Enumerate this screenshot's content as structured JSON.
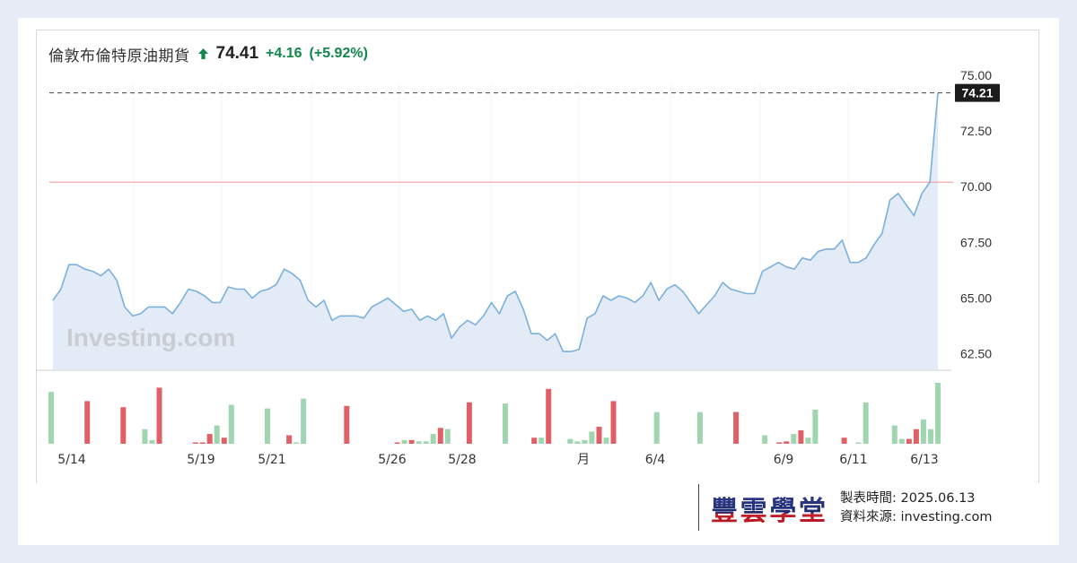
{
  "header": {
    "title": "倫敦布倫特原油期貨",
    "price": "74.41",
    "change": "+4.16",
    "change_pct": "(+5.92%)",
    "trend_icon": "up-arrow-icon",
    "change_color": "#12874a"
  },
  "chart_data": {
    "type": "line",
    "y_ticks": [
      "75.00",
      "72.50",
      "70.00",
      "67.50",
      "65.00",
      "62.50"
    ],
    "ylim": [
      61.8,
      75.4
    ],
    "x_tick_labels": [
      "5/14",
      "5/19",
      "5/21",
      "5/26",
      "5/28",
      "月",
      "6/4",
      "6/9",
      "6/11",
      "6/13"
    ],
    "last_value_label": "74.21",
    "last_value": 74.21,
    "reference_line": 70.2,
    "watermark": "Investing.com",
    "line_color": "#7ab0db",
    "area_color": "#e3ecf6",
    "reference_color": "#f2a9a9",
    "series": [
      {
        "values": [
          64.9,
          65.4,
          66.5,
          66.5,
          66.3,
          66.2,
          66.0,
          66.3,
          65.8,
          64.6,
          64.2,
          64.3,
          64.6,
          64.6,
          64.6,
          64.3,
          64.8,
          65.4,
          65.3,
          65.1,
          64.8,
          64.8,
          65.5,
          65.4,
          65.4,
          65.0,
          65.3,
          65.4,
          65.6,
          66.3,
          66.1,
          65.8,
          64.9,
          64.6,
          64.9,
          64.0,
          64.2,
          64.2,
          64.2,
          64.1,
          64.6,
          64.8,
          65.0,
          64.7,
          64.4,
          64.5,
          64.0,
          64.2,
          64.0,
          64.3,
          63.2,
          63.7,
          64.0,
          63.8,
          64.2,
          64.8,
          64.3,
          65.1,
          65.3,
          64.5,
          63.4,
          63.4,
          63.1,
          63.4,
          62.6,
          62.6,
          62.7,
          64.1,
          64.3,
          65.1,
          64.9,
          65.1,
          65.0,
          64.8,
          65.1,
          65.7,
          64.9,
          65.4,
          65.6,
          65.3,
          64.8,
          64.3,
          64.7,
          65.1,
          65.7,
          65.4,
          65.3,
          65.2,
          65.2,
          66.2,
          66.4,
          66.6,
          66.4,
          66.3,
          66.8,
          66.7,
          67.1,
          67.2,
          67.2,
          67.6,
          66.6,
          66.6,
          66.8,
          67.4,
          67.9,
          69.4,
          69.7,
          69.2,
          68.7,
          69.7,
          70.2,
          74.21
        ]
      }
    ],
    "volume": {
      "up_color": "#9fd6b0",
      "down_color": "#e06068",
      "bars": [
        {
          "v": 0.85,
          "d": "up"
        },
        {
          "v": 0,
          "d": "up"
        },
        {
          "v": 0,
          "d": "up"
        },
        {
          "v": 0,
          "d": "up"
        },
        {
          "v": 0,
          "d": "up"
        },
        {
          "v": 0.7,
          "d": "down"
        },
        {
          "v": 0,
          "d": "up"
        },
        {
          "v": 0,
          "d": "up"
        },
        {
          "v": 0,
          "d": "up"
        },
        {
          "v": 0,
          "d": "up"
        },
        {
          "v": 0.6,
          "d": "down"
        },
        {
          "v": 0,
          "d": "up"
        },
        {
          "v": 0,
          "d": "up"
        },
        {
          "v": 0.24,
          "d": "up"
        },
        {
          "v": 0.06,
          "d": "up"
        },
        {
          "v": 0.92,
          "d": "down"
        },
        {
          "v": 0,
          "d": "up"
        },
        {
          "v": 0,
          "d": "up"
        },
        {
          "v": 0,
          "d": "up"
        },
        {
          "v": 0,
          "d": "up"
        },
        {
          "v": 0.02,
          "d": "down"
        },
        {
          "v": 0.02,
          "d": "down"
        },
        {
          "v": 0.16,
          "d": "down"
        },
        {
          "v": 0.3,
          "d": "up"
        },
        {
          "v": 0.1,
          "d": "down"
        },
        {
          "v": 0.64,
          "d": "up"
        },
        {
          "v": 0,
          "d": "up"
        },
        {
          "v": 0,
          "d": "up"
        },
        {
          "v": 0,
          "d": "up"
        },
        {
          "v": 0,
          "d": "up"
        },
        {
          "v": 0.58,
          "d": "up"
        },
        {
          "v": 0,
          "d": "up"
        },
        {
          "v": 0,
          "d": "up"
        },
        {
          "v": 0.14,
          "d": "down"
        },
        {
          "v": 0.02,
          "d": "up"
        },
        {
          "v": 0.74,
          "d": "up"
        },
        {
          "v": 0,
          "d": "up"
        },
        {
          "v": 0,
          "d": "up"
        },
        {
          "v": 0,
          "d": "up"
        },
        {
          "v": 0,
          "d": "up"
        },
        {
          "v": 0,
          "d": "up"
        },
        {
          "v": 0.62,
          "d": "down"
        },
        {
          "v": 0,
          "d": "up"
        },
        {
          "v": 0,
          "d": "up"
        },
        {
          "v": 0,
          "d": "up"
        },
        {
          "v": 0,
          "d": "up"
        },
        {
          "v": 0,
          "d": "up"
        },
        {
          "v": 0,
          "d": "up"
        },
        {
          "v": 0.02,
          "d": "down"
        },
        {
          "v": 0.06,
          "d": "up"
        },
        {
          "v": 0.06,
          "d": "down"
        },
        {
          "v": 0.04,
          "d": "up"
        },
        {
          "v": 0.04,
          "d": "up"
        },
        {
          "v": 0.16,
          "d": "up"
        },
        {
          "v": 0.26,
          "d": "down"
        },
        {
          "v": 0.24,
          "d": "up"
        },
        {
          "v": 0,
          "d": "up"
        },
        {
          "v": 0,
          "d": "up"
        },
        {
          "v": 0.68,
          "d": "down"
        },
        {
          "v": 0,
          "d": "up"
        },
        {
          "v": 0,
          "d": "up"
        },
        {
          "v": 0,
          "d": "up"
        },
        {
          "v": 0,
          "d": "up"
        },
        {
          "v": 0.66,
          "d": "up"
        },
        {
          "v": 0,
          "d": "up"
        },
        {
          "v": 0,
          "d": "up"
        },
        {
          "v": 0,
          "d": "up"
        },
        {
          "v": 0.1,
          "d": "down"
        },
        {
          "v": 0.1,
          "d": "up"
        },
        {
          "v": 0.9,
          "d": "down"
        },
        {
          "v": 0,
          "d": "up"
        },
        {
          "v": 0,
          "d": "up"
        },
        {
          "v": 0.08,
          "d": "up"
        },
        {
          "v": 0.04,
          "d": "up"
        },
        {
          "v": 0.06,
          "d": "up"
        },
        {
          "v": 0.2,
          "d": "up"
        },
        {
          "v": 0.28,
          "d": "down"
        },
        {
          "v": 0.1,
          "d": "up"
        },
        {
          "v": 0.7,
          "d": "down"
        },
        {
          "v": 0,
          "d": "up"
        },
        {
          "v": 0,
          "d": "up"
        },
        {
          "v": 0,
          "d": "up"
        },
        {
          "v": 0,
          "d": "up"
        },
        {
          "v": 0,
          "d": "up"
        },
        {
          "v": 0.52,
          "d": "up"
        },
        {
          "v": 0,
          "d": "up"
        },
        {
          "v": 0,
          "d": "up"
        },
        {
          "v": 0,
          "d": "up"
        },
        {
          "v": 0,
          "d": "up"
        },
        {
          "v": 0,
          "d": "up"
        },
        {
          "v": 0.52,
          "d": "up"
        },
        {
          "v": 0,
          "d": "up"
        },
        {
          "v": 0,
          "d": "up"
        },
        {
          "v": 0,
          "d": "up"
        },
        {
          "v": 0,
          "d": "up"
        },
        {
          "v": 0.52,
          "d": "down"
        },
        {
          "v": 0,
          "d": "up"
        },
        {
          "v": 0,
          "d": "up"
        },
        {
          "v": 0,
          "d": "up"
        },
        {
          "v": 0.14,
          "d": "up"
        },
        {
          "v": 0,
          "d": "up"
        },
        {
          "v": 0.02,
          "d": "down"
        },
        {
          "v": 0.04,
          "d": "down"
        },
        {
          "v": 0.16,
          "d": "up"
        },
        {
          "v": 0.22,
          "d": "down"
        },
        {
          "v": 0.1,
          "d": "up"
        },
        {
          "v": 0.56,
          "d": "up"
        },
        {
          "v": 0,
          "d": "up"
        },
        {
          "v": 0,
          "d": "up"
        },
        {
          "v": 0,
          "d": "up"
        },
        {
          "v": 0.1,
          "d": "down"
        },
        {
          "v": 0,
          "d": "up"
        },
        {
          "v": 0.02,
          "d": "up"
        },
        {
          "v": 0.68,
          "d": "up"
        },
        {
          "v": 0,
          "d": "up"
        },
        {
          "v": 0,
          "d": "up"
        },
        {
          "v": 0,
          "d": "up"
        },
        {
          "v": 0.3,
          "d": "up"
        },
        {
          "v": 0.08,
          "d": "up"
        },
        {
          "v": 0.08,
          "d": "down"
        },
        {
          "v": 0.24,
          "d": "down"
        },
        {
          "v": 0.4,
          "d": "up"
        },
        {
          "v": 0.24,
          "d": "up"
        },
        {
          "v": 1.0,
          "d": "up"
        }
      ]
    }
  },
  "footer": {
    "logo_text": "豐雲學堂",
    "made_time_label": "製表時間:",
    "made_time": "2025.06.13",
    "source_label": "資料來源:",
    "source": "investing.com"
  }
}
